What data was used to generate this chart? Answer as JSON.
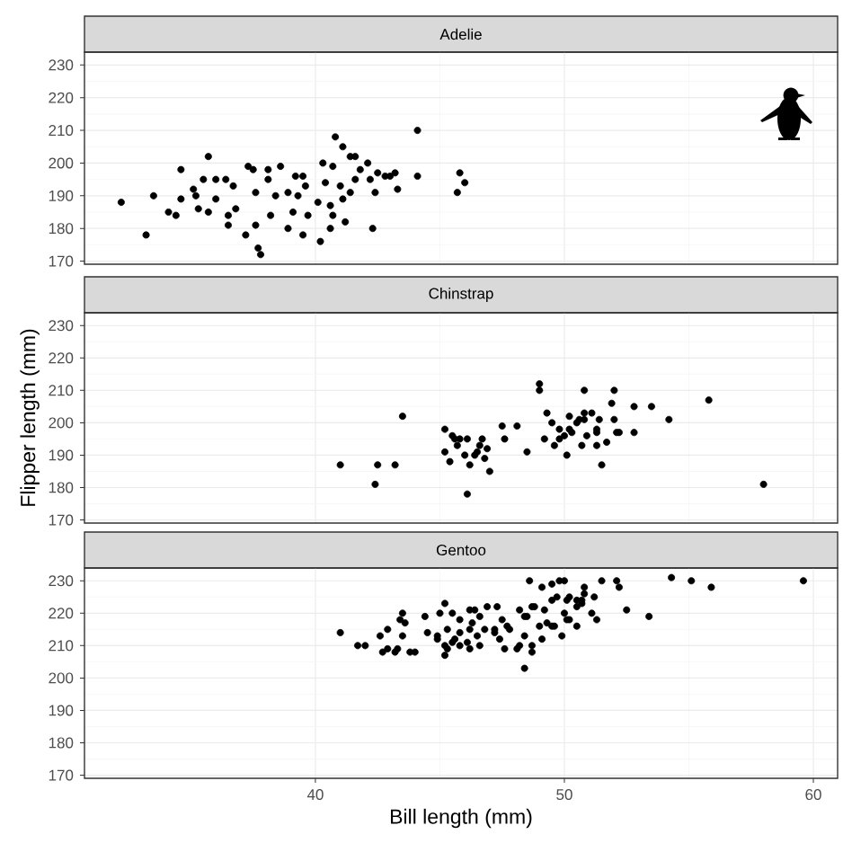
{
  "chart_data": [
    {
      "type": "scatter",
      "title": "Adelie",
      "color": "#000000",
      "grid": true,
      "tick_labels": "y",
      "xlim": [
        30.725,
        60.975
      ],
      "ylim": [
        169.05,
        233.95
      ],
      "xticks": [
        40,
        50,
        60
      ],
      "yticks": [
        170,
        180,
        190,
        200,
        210,
        220,
        230
      ],
      "x": [
        32.2,
        33.2,
        33.5,
        34.1,
        34.4,
        34.6,
        34.6,
        35.1,
        35.2,
        35.3,
        35.5,
        35.7,
        35.7,
        36.0,
        36.0,
        36.4,
        36.5,
        36.5,
        36.7,
        36.8,
        37.2,
        37.3,
        37.5,
        37.6,
        37.7,
        37.8,
        37.6,
        38.1,
        38.1,
        38.2,
        38.4,
        38.6,
        38.9,
        38.9,
        39.1,
        39.2,
        39.3,
        39.5,
        39.6,
        39.5,
        39.7,
        40.1,
        40.2,
        40.3,
        40.4,
        40.6,
        40.6,
        40.7,
        40.7,
        40.8,
        41.0,
        41.1,
        41.1,
        41.2,
        41.4,
        41.4,
        41.6,
        41.6,
        41.8,
        42.1,
        42.2,
        42.3,
        42.4,
        42.5,
        42.8,
        43.0,
        43.2,
        43.3,
        44.1,
        44.1,
        45.7,
        45.8,
        46.0
      ],
      "values": [
        188,
        178,
        190,
        185,
        184,
        198,
        189,
        192,
        190,
        186,
        195,
        202,
        185,
        195,
        189,
        195,
        181,
        184,
        193,
        186,
        178,
        199,
        198,
        191,
        174,
        172,
        181,
        198,
        195,
        184,
        190,
        199,
        180,
        191,
        185,
        196,
        190,
        196,
        193,
        178,
        184,
        188,
        176,
        200,
        194,
        180,
        187,
        199,
        184,
        208,
        193,
        205,
        189,
        182,
        191,
        202,
        202,
        195,
        198,
        200,
        195,
        180,
        191,
        197,
        196,
        196,
        197,
        192,
        210,
        196,
        191,
        197,
        194
      ]
    },
    {
      "type": "scatter",
      "title": "Chinstrap",
      "ylabel": "Flipper length (mm)",
      "color": "#000000",
      "grid": true,
      "tick_labels": "y",
      "xlim": [
        30.725,
        60.975
      ],
      "ylim": [
        169.05,
        233.95
      ],
      "xticks": [
        40,
        50,
        60
      ],
      "yticks": [
        170,
        180,
        190,
        200,
        210,
        220,
        230
      ],
      "x": [
        41.0,
        42.4,
        42.5,
        43.2,
        43.5,
        45.2,
        45.2,
        45.4,
        45.5,
        45.6,
        45.7,
        45.8,
        46.0,
        46.1,
        46.1,
        46.2,
        46.4,
        46.5,
        46.6,
        46.7,
        46.8,
        46.9,
        47.0,
        47.5,
        47.6,
        48.1,
        48.5,
        49.0,
        49.0,
        49.2,
        49.3,
        49.5,
        49.6,
        49.8,
        49.8,
        50.0,
        50.1,
        50.2,
        50.2,
        50.3,
        50.5,
        50.6,
        50.7,
        50.8,
        50.8,
        50.8,
        50.9,
        51.1,
        51.3,
        51.3,
        51.3,
        51.4,
        51.5,
        51.7,
        51.9,
        52.0,
        52.0,
        52.1,
        52.2,
        52.8,
        52.8,
        53.5,
        54.2,
        55.8,
        58.0
      ],
      "values": [
        187,
        181,
        187,
        187,
        202,
        198,
        191,
        188,
        196,
        195,
        193,
        195,
        190,
        195,
        178,
        187,
        190,
        191,
        193,
        195,
        189,
        192,
        185,
        199,
        195,
        199,
        191,
        212,
        210,
        195,
        203,
        200,
        193,
        195,
        198,
        196,
        190,
        198,
        202,
        197,
        200,
        201,
        193,
        203,
        210,
        201,
        196,
        203,
        198,
        193,
        197,
        201,
        187,
        194,
        206,
        201,
        210,
        197,
        197,
        197,
        205,
        205,
        201,
        207,
        181
      ]
    },
    {
      "type": "scatter",
      "title": "Gentoo",
      "xlabel": "Bill length (mm)",
      "color": "#000000",
      "grid": true,
      "xlim": [
        30.725,
        60.975
      ],
      "ylim": [
        169.05,
        233.95
      ],
      "xticks": [
        40,
        50,
        60
      ],
      "yticks": [
        170,
        180,
        190,
        200,
        210,
        220,
        230
      ],
      "x": [
        41.0,
        41.7,
        42.0,
        42.6,
        42.7,
        42.9,
        42.9,
        43.2,
        43.3,
        43.4,
        43.5,
        43.5,
        43.6,
        43.8,
        44.0,
        44.4,
        44.5,
        44.9,
        44.9,
        45.0,
        45.2,
        45.2,
        45.2,
        45.3,
        45.3,
        45.5,
        45.5,
        45.6,
        45.8,
        45.8,
        45.8,
        46.1,
        46.2,
        46.2,
        46.2,
        46.3,
        46.4,
        46.5,
        46.6,
        46.6,
        46.8,
        46.9,
        47.2,
        47.2,
        47.3,
        47.4,
        47.5,
        47.6,
        47.7,
        47.8,
        48.1,
        48.2,
        48.2,
        48.4,
        48.4,
        48.4,
        48.5,
        48.6,
        48.7,
        48.7,
        48.7,
        48.8,
        49.0,
        49.1,
        49.1,
        49.2,
        49.3,
        49.5,
        49.5,
        49.5,
        49.6,
        49.7,
        49.8,
        49.9,
        50.0,
        50.0,
        50.1,
        50.1,
        50.2,
        50.2,
        50.5,
        50.5,
        50.5,
        50.7,
        50.7,
        50.8,
        50.8,
        51.1,
        51.2,
        51.3,
        51.5,
        52.1,
        52.2,
        52.5,
        53.4,
        54.3,
        55.1,
        55.9,
        59.6
      ],
      "values": [
        214,
        210,
        210,
        213,
        208,
        209,
        215,
        208,
        209,
        218,
        213,
        220,
        217,
        208,
        208,
        219,
        214,
        213,
        212,
        220,
        210,
        207,
        223,
        215,
        209,
        211,
        220,
        212,
        210,
        218,
        214,
        211,
        221,
        209,
        215,
        217,
        221,
        213,
        219,
        210,
        215,
        222,
        215,
        214,
        222,
        212,
        218,
        209,
        216,
        215,
        209,
        210,
        221,
        213,
        203,
        219,
        219,
        230,
        210,
        208,
        222,
        222,
        216,
        212,
        228,
        221,
        217,
        216,
        224,
        229,
        216,
        225,
        230,
        213,
        220,
        230,
        224,
        218,
        225,
        218,
        216,
        222,
        224,
        223,
        224,
        226,
        228,
        220,
        225,
        218,
        230,
        230,
        228,
        221,
        219,
        231,
        230,
        228,
        230
      ]
    }
  ]
}
